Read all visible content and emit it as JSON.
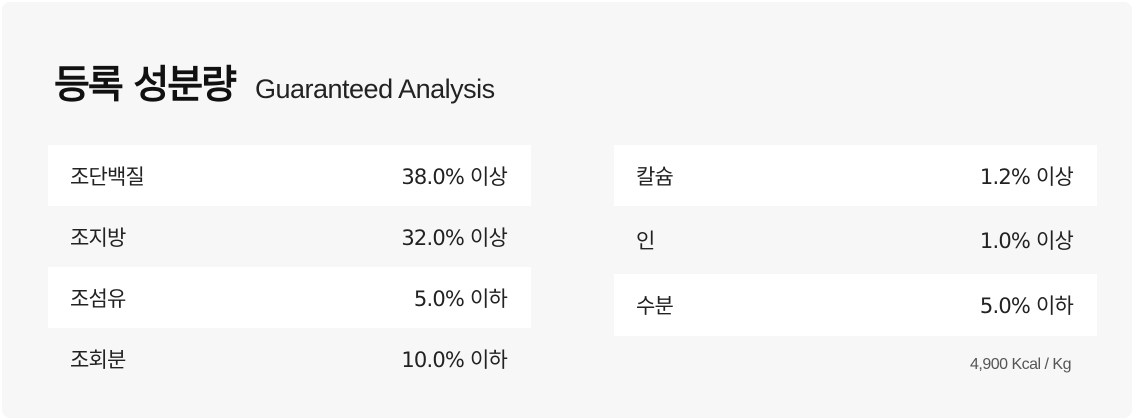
{
  "title": {
    "korean": "등록 성분량",
    "english": "Guaranteed Analysis"
  },
  "left_column": [
    {
      "name": "조단백질",
      "value": "38.0% 이상"
    },
    {
      "name": "조지방",
      "value": "32.0% 이상"
    },
    {
      "name": "조섬유",
      "value": "5.0% 이하"
    },
    {
      "name": "조회분",
      "value": "10.0% 이하"
    }
  ],
  "right_column": [
    {
      "name": "칼슘",
      "value": "1.2% 이상"
    },
    {
      "name": "인",
      "value": "1.0% 이상"
    },
    {
      "name": "수분",
      "value": "5.0% 이하"
    }
  ],
  "energy": "4,900 Kcal / Kg",
  "colors": {
    "panel_background": "#f7f7f7",
    "row_highlight": "#ffffff",
    "text": "#222222"
  }
}
